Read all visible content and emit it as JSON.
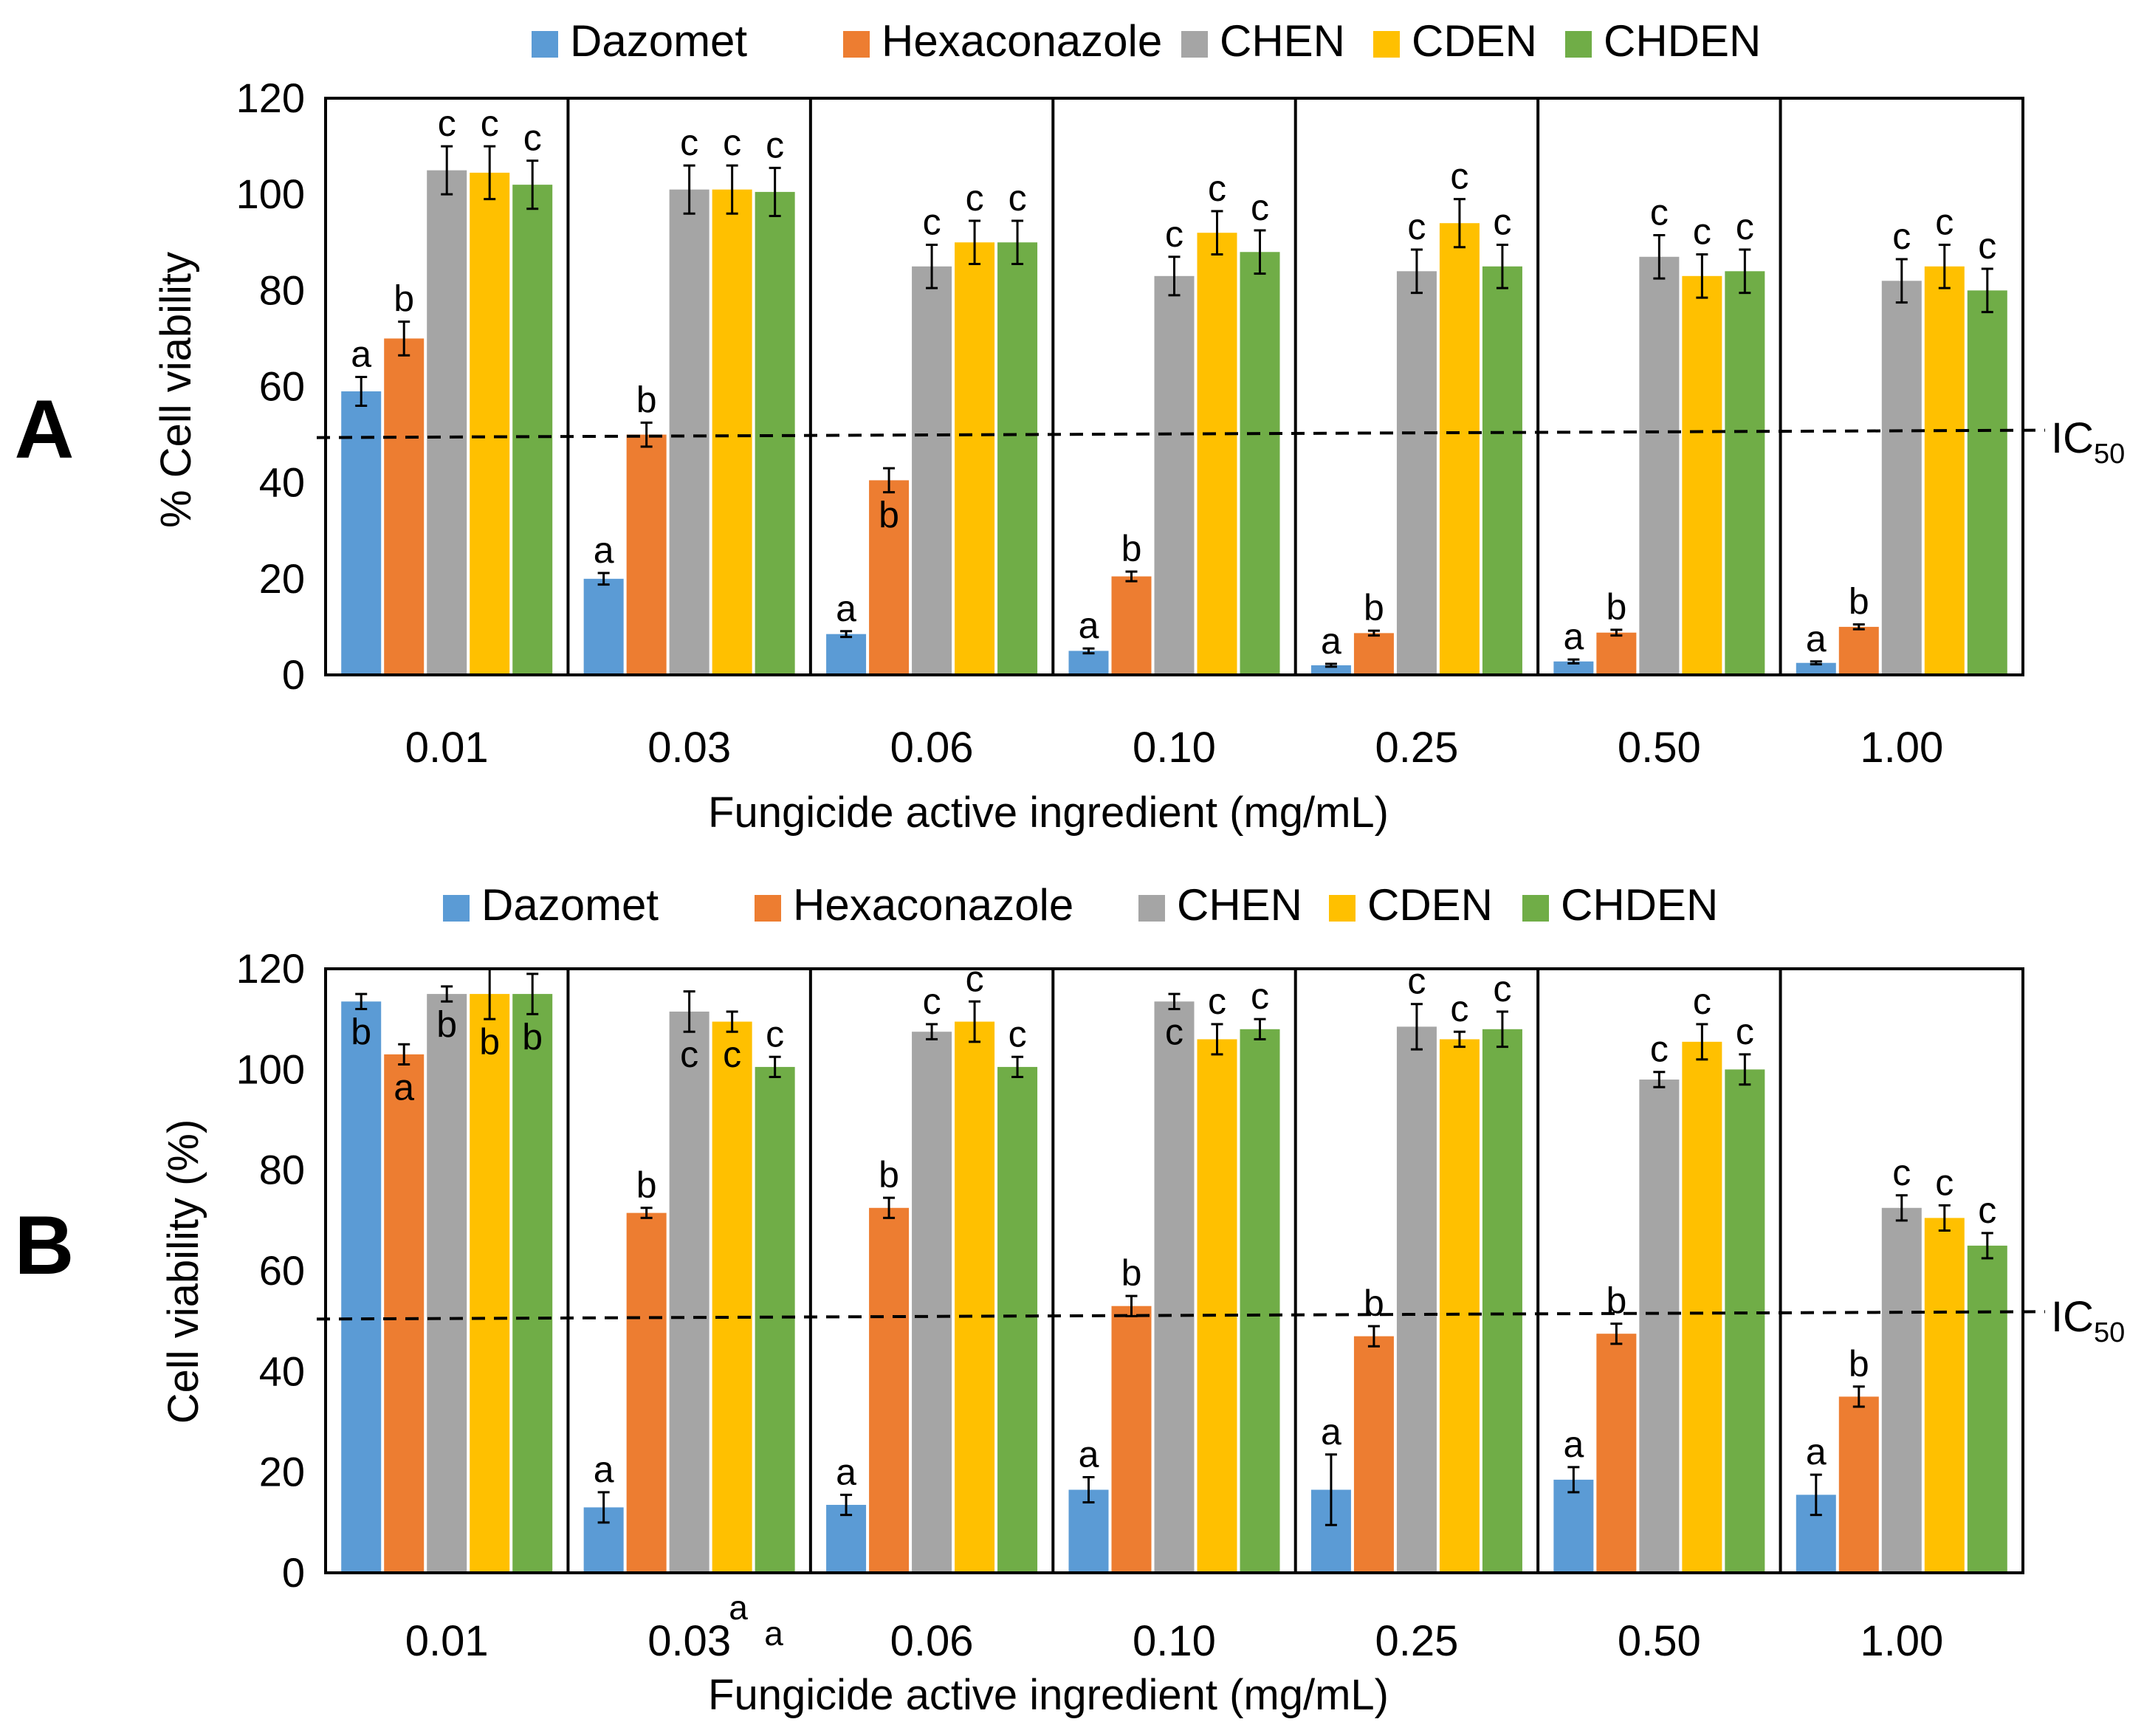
{
  "colors": {
    "Dazomet": "#5B9BD5",
    "Hexaconazole": "#ED7D31",
    "CHEN": "#A5A5A5",
    "CDEN": "#FFC000",
    "CHDEN": "#70AD47"
  },
  "chart_data": [
    {
      "type": "bar",
      "panel_label": "A",
      "ylabel": "% Cell viability",
      "xlabel": "Fungicide active ingredient (mg/mL)",
      "ylim": [
        0,
        120
      ],
      "yticks": [
        0,
        20,
        40,
        60,
        80,
        100,
        120
      ],
      "ytick_labels": [
        "0",
        "20",
        "40",
        "60",
        "80",
        "100",
        "120"
      ],
      "categories": [
        "0.01",
        "0.03",
        "0.06",
        "0.10",
        "0.25",
        "0.50",
        "1.00"
      ],
      "reference_line": {
        "value": 50,
        "label": "IC",
        "label_sub": "50"
      },
      "legend_position": "top",
      "series": [
        {
          "name": "Dazomet",
          "values": [
            59,
            20,
            8.5,
            5,
            2,
            2.8,
            2.5
          ],
          "errors": [
            3,
            1.2,
            0.6,
            0.5,
            0.3,
            0.4,
            0.3
          ],
          "letters": [
            "a",
            "a",
            "a",
            "a",
            "a",
            "a",
            "a"
          ],
          "letter_pos": [
            "above",
            "above",
            "above",
            "above",
            "above",
            "above",
            "above"
          ]
        },
        {
          "name": "Hexaconazole",
          "values": [
            70,
            50,
            40.5,
            20.5,
            8.7,
            8.8,
            10
          ],
          "errors": [
            3.5,
            2.5,
            2.5,
            1,
            0.5,
            0.6,
            0.5
          ],
          "letters": [
            "b",
            "b",
            "b",
            "b",
            "b",
            "b",
            "b"
          ],
          "letter_pos": [
            "above",
            "above",
            "inside",
            "above",
            "above",
            "above",
            "above"
          ]
        },
        {
          "name": "CHEN",
          "values": [
            105,
            101,
            85,
            83,
            84,
            87,
            82
          ],
          "errors": [
            5,
            5,
            4.5,
            4,
            4.5,
            4.5,
            4.5
          ],
          "letters": [
            "c",
            "c",
            "c",
            "c",
            "c",
            "c",
            "c"
          ],
          "letter_pos": [
            "above",
            "above",
            "above",
            "above",
            "above",
            "above",
            "above"
          ]
        },
        {
          "name": "CDEN",
          "values": [
            104.5,
            101,
            90,
            92,
            94,
            83,
            85
          ],
          "errors": [
            5.5,
            5,
            4.5,
            4.5,
            5,
            4.5,
            4.5
          ],
          "letters": [
            "c",
            "c",
            "c",
            "c",
            "c",
            "c",
            "c"
          ],
          "letter_pos": [
            "above",
            "above",
            "above",
            "above",
            "above",
            "above",
            "above"
          ]
        },
        {
          "name": "CHDEN",
          "values": [
            102,
            100.5,
            90,
            88,
            85,
            84,
            80
          ],
          "errors": [
            5,
            5,
            4.5,
            4.5,
            4.5,
            4.5,
            4.5
          ],
          "letters": [
            "c",
            "c",
            "c",
            "c",
            "c",
            "c",
            "c"
          ],
          "letter_pos": [
            "above",
            "above",
            "above",
            "above",
            "above",
            "above",
            "above"
          ]
        }
      ]
    },
    {
      "type": "bar",
      "panel_label": "B",
      "ylabel": "Cell viability (%)",
      "xlabel": "Fungicide active ingredient (mg/mL)",
      "ylim": [
        0,
        120
      ],
      "yticks": [
        0,
        20,
        40,
        60,
        80,
        100,
        120
      ],
      "ytick_labels": [
        "0",
        "20",
        "40",
        "60",
        "80",
        "100",
        "120"
      ],
      "categories": [
        "0.01",
        "0.03",
        "0.06",
        "0.10",
        "0.25",
        "0.50",
        "1.00"
      ],
      "reference_line": {
        "value": 51,
        "label": "IC",
        "label_sub": "50"
      },
      "legend_position": "top",
      "series": [
        {
          "name": "Dazomet",
          "values": [
            113.5,
            13,
            13.5,
            16.5,
            16.5,
            18.5,
            15.5
          ],
          "errors": [
            1.5,
            3,
            2,
            2.5,
            7,
            2.5,
            4
          ],
          "letters": [
            "b",
            "a",
            "a",
            "a",
            "a",
            "a",
            "a"
          ],
          "letter_pos": [
            "inside",
            "above",
            "above",
            "above",
            "above",
            "above",
            "above"
          ]
        },
        {
          "name": "Hexaconazole",
          "values": [
            103,
            71.5,
            72.5,
            53,
            47,
            47.5,
            35
          ],
          "errors": [
            2,
            1,
            2,
            2,
            2,
            2,
            2
          ],
          "letters": [
            "a",
            "b",
            "b",
            "b",
            "b",
            "b",
            "b"
          ],
          "letter_pos": [
            "inside",
            "above",
            "above",
            "above",
            "above",
            "above",
            "above"
          ]
        },
        {
          "name": "CHEN",
          "values": [
            115,
            111.5,
            107.5,
            113.5,
            108.5,
            98,
            72.5
          ],
          "errors": [
            1.5,
            4,
            1.5,
            1.5,
            4.5,
            1.5,
            2.5
          ],
          "letters": [
            "b",
            "c",
            "c",
            "c",
            "c",
            "c",
            "c"
          ],
          "letter_pos": [
            "inside",
            "inside",
            "above",
            "inside",
            "above",
            "above",
            "above"
          ]
        },
        {
          "name": "CDEN",
          "values": [
            115,
            109.5,
            109.5,
            106,
            106,
            105.5,
            70.5
          ],
          "errors": [
            5,
            2,
            4,
            3,
            1.5,
            3.5,
            2.5
          ],
          "letters": [
            "b",
            "c",
            "c",
            "c",
            "c",
            "c",
            "c"
          ],
          "letter_pos": [
            "inside",
            "inside",
            "above",
            "above",
            "above",
            "above",
            "above"
          ]
        },
        {
          "name": "CHDEN",
          "values": [
            115,
            100.5,
            100.5,
            108,
            108,
            100,
            65
          ],
          "errors": [
            4,
            2,
            2,
            2,
            3.5,
            3,
            2.5
          ],
          "letters": [
            "b",
            "c",
            "c",
            "c",
            "c",
            "c",
            "c"
          ],
          "letter_pos": [
            "inside",
            "above",
            "above",
            "above",
            "above",
            "above",
            "above"
          ]
        }
      ],
      "stray_letters": [
        "a",
        "a"
      ]
    }
  ]
}
